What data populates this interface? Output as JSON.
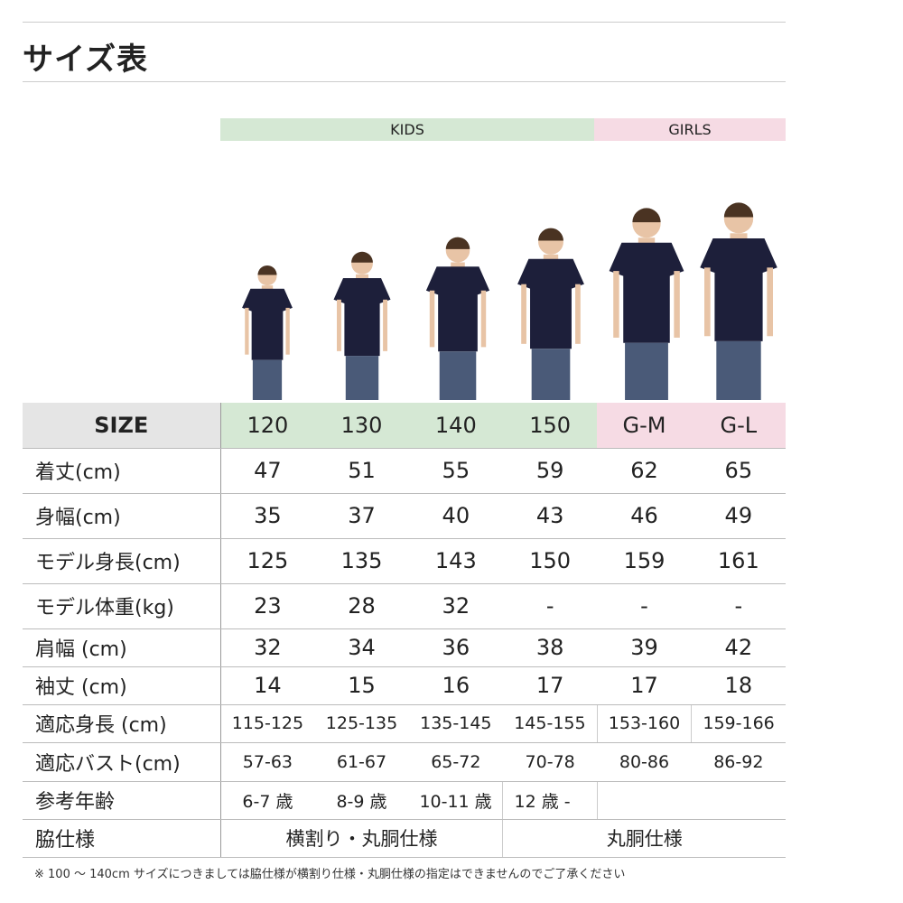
{
  "title": "サイズ表",
  "groups": {
    "kids": "KIDS",
    "girls": "GIRLS",
    "kids_color": "#d5e8d4",
    "girls_color": "#f6dbe4",
    "size_label_bg": "#e5e5e5"
  },
  "header": {
    "label": "SIZE",
    "sizes": [
      "120",
      "130",
      "140",
      "150",
      "G-M",
      "G-L"
    ]
  },
  "rows": [
    {
      "label": "着丈(cm)",
      "values": [
        "47",
        "51",
        "55",
        "59",
        "62",
        "65"
      ]
    },
    {
      "label": "身幅(cm)",
      "values": [
        "35",
        "37",
        "40",
        "43",
        "46",
        "49"
      ]
    },
    {
      "label": "モデル身長(cm)",
      "values": [
        "125",
        "135",
        "143",
        "150",
        "159",
        "161"
      ]
    },
    {
      "label": "モデル体重(kg)",
      "values": [
        "23",
        "28",
        "32",
        "-",
        "-",
        "-"
      ]
    },
    {
      "label": "肩幅 (cm)",
      "values": [
        "32",
        "34",
        "36",
        "38",
        "39",
        "42"
      ]
    },
    {
      "label": "袖丈 (cm)",
      "values": [
        "14",
        "15",
        "16",
        "17",
        "17",
        "18"
      ]
    },
    {
      "label": "適応身長 (cm)",
      "values": [
        "115-125",
        "125-135",
        "135-145",
        "145-155",
        "153-160",
        "159-166"
      ]
    },
    {
      "label": "適応バスト(cm)",
      "values": [
        "57-63",
        "61-67",
        "65-72",
        "70-78",
        "80-86",
        "86-92"
      ]
    },
    {
      "label": "参考年齢",
      "values": [
        "6-7 歳",
        "8-9 歳",
        "10-11 歳",
        "12 歳 -"
      ]
    },
    {
      "label": "脇仕様",
      "values": [
        "横割り・丸胴仕様",
        "丸胴仕様"
      ]
    }
  ],
  "note": "※ 100 ～ 140cm サイズにつきましては脇仕様が横割り仕様・丸胴仕様の指定はできませんのでご了承ください"
}
